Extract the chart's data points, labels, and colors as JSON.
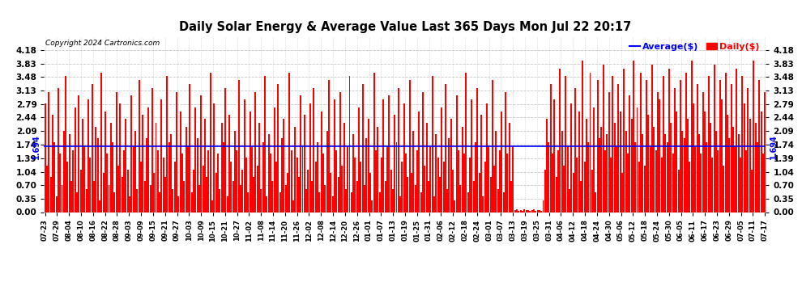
{
  "title": "Daily Solar Energy & Average Value Last 365 Days Mon Jul 22 20:17",
  "copyright": "Copyright 2024 Cartronics.com",
  "average_value": 1.694,
  "average_label": "1.694",
  "yticks": [
    0.0,
    0.35,
    0.7,
    1.04,
    1.39,
    1.74,
    2.09,
    2.44,
    2.79,
    3.13,
    3.48,
    3.83,
    4.18
  ],
  "ylim": [
    0.0,
    4.53
  ],
  "bar_color": "#ff0000",
  "avg_line_color": "#0000ff",
  "background_color": "#ffffff",
  "grid_color": "#bbbbbb",
  "title_color": "#000000",
  "copyright_color": "#000000",
  "legend_avg_color": "#0000ff",
  "legend_daily_color": "#ff0000",
  "xtick_labels": [
    "07-23",
    "07-29",
    "08-04",
    "08-10",
    "08-16",
    "08-22",
    "08-28",
    "09-03",
    "09-09",
    "09-15",
    "09-21",
    "09-27",
    "10-03",
    "10-09",
    "10-15",
    "10-21",
    "10-27",
    "11-02",
    "11-08",
    "11-14",
    "11-20",
    "11-26",
    "12-02",
    "12-08",
    "12-14",
    "12-20",
    "12-26",
    "01-01",
    "01-07",
    "01-13",
    "01-19",
    "01-25",
    "01-31",
    "02-06",
    "02-12",
    "02-18",
    "02-24",
    "03-01",
    "03-07",
    "03-13",
    "03-19",
    "03-25",
    "03-31",
    "04-06",
    "04-12",
    "04-18",
    "04-24",
    "04-30",
    "05-06",
    "05-12",
    "05-18",
    "05-24",
    "05-30",
    "06-05",
    "06-11",
    "06-17",
    "06-23",
    "06-29",
    "07-05",
    "07-11",
    "07-17"
  ],
  "bar_values": [
    2.8,
    1.2,
    3.1,
    0.9,
    2.5,
    1.8,
    0.4,
    3.2,
    1.5,
    0.7,
    2.1,
    3.5,
    1.3,
    2.0,
    0.8,
    1.6,
    2.7,
    0.5,
    3.0,
    1.1,
    2.4,
    1.7,
    0.6,
    2.9,
    1.4,
    3.3,
    0.8,
    2.2,
    1.9,
    0.3,
    3.6,
    1.0,
    2.6,
    1.5,
    0.7,
    2.3,
    1.8,
    0.5,
    3.1,
    1.2,
    2.8,
    0.9,
    1.6,
    2.4,
    1.1,
    0.4,
    3.0,
    1.7,
    2.1,
    0.6,
    3.4,
    1.3,
    2.5,
    0.8,
    1.9,
    2.7,
    0.7,
    3.2,
    1.0,
    2.3,
    1.6,
    0.5,
    2.9,
    1.4,
    0.9,
    3.5,
    1.8,
    2.0,
    0.6,
    1.3,
    3.1,
    0.4,
    2.6,
    1.5,
    0.8,
    2.2,
    1.7,
    3.3,
    0.5,
    1.1,
    2.7,
    1.9,
    0.7,
    3.0,
    1.2,
    2.4,
    0.9,
    1.6,
    3.6,
    0.3,
    2.8,
    1.0,
    1.5,
    0.6,
    2.3,
    1.8,
    3.2,
    0.4,
    2.5,
    1.3,
    0.8,
    2.1,
    1.6,
    3.4,
    0.7,
    1.1,
    2.9,
    1.4,
    0.5,
    2.6,
    1.7,
    0.9,
    3.1,
    1.2,
    2.3,
    0.6,
    1.8,
    3.5,
    0.4,
    2.0,
    1.5,
    0.8,
    2.7,
    1.3,
    3.3,
    0.5,
    1.9,
    2.4,
    0.7,
    1.0,
    3.6,
    1.6,
    0.3,
    2.2,
    1.4,
    0.9,
    3.0,
    1.7,
    2.5,
    0.6,
    1.1,
    2.8,
    0.8,
    3.2,
    1.3,
    1.8,
    0.5,
    2.6,
    1.5,
    0.7,
    2.1,
    3.4,
    1.0,
    0.4,
    2.9,
    1.6,
    0.9,
    3.1,
    1.2,
    2.3,
    0.6,
    1.7,
    3.5,
    0.5,
    2.0,
    1.4,
    0.8,
    2.7,
    1.3,
    3.3,
    0.7,
    1.9,
    2.4,
    1.0,
    0.3,
    3.6,
    1.6,
    2.2,
    0.5,
    1.4,
    2.9,
    0.8,
    1.7,
    3.0,
    1.1,
    0.6,
    2.5,
    1.8,
    3.2,
    0.4,
    1.3,
    2.8,
    1.5,
    0.9,
    3.4,
    1.0,
    2.1,
    0.7,
    1.6,
    2.6,
    0.5,
    3.1,
    1.2,
    2.3,
    0.8,
    1.7,
    3.5,
    0.4,
    2.0,
    1.4,
    0.9,
    2.7,
    1.3,
    3.3,
    0.6,
    1.9,
    2.4,
    1.1,
    0.3,
    3.0,
    1.6,
    0.7,
    2.2,
    1.5,
    3.6,
    0.5,
    1.4,
    2.9,
    0.8,
    1.8,
    3.2,
    1.0,
    2.5,
    0.4,
    1.3,
    2.8,
    1.7,
    0.9,
    3.4,
    1.2,
    2.1,
    0.6,
    1.6,
    2.6,
    0.5,
    3.1,
    1.5,
    2.3,
    0.8,
    1.7,
    0.05,
    0.07,
    0.03,
    0.06,
    0.04,
    0.08,
    0.05,
    0.06,
    0.03,
    0.05,
    0.07,
    0.04,
    0.06,
    0.05,
    0.03,
    0.3,
    1.1,
    2.4,
    1.8,
    3.3,
    1.5,
    2.9,
    0.9,
    1.6,
    3.7,
    2.1,
    1.2,
    3.5,
    1.7,
    0.6,
    2.8,
    1.0,
    3.2,
    1.4,
    2.6,
    0.8,
    3.9,
    1.3,
    2.4,
    1.8,
    3.6,
    1.1,
    2.7,
    0.5,
    3.4,
    1.9,
    2.2,
    3.8,
    1.6,
    2.0,
    3.1,
    1.4,
    3.5,
    2.3,
    1.7,
    3.3,
    2.6,
    1.0,
    3.7,
    2.1,
    1.5,
    3.0,
    2.4,
    3.9,
    1.8,
    2.7,
    1.3,
    3.6,
    2.0,
    1.2,
    3.4,
    2.5,
    1.7,
    3.8,
    2.2,
    1.6,
    3.1,
    2.9,
    1.4,
    3.5,
    2.0,
    1.8,
    3.7,
    2.3,
    1.5,
    3.2,
    2.6,
    1.1,
    3.4,
    2.1,
    1.9,
    3.6,
    2.4,
    1.3,
    3.9,
    2.8,
    1.7,
    3.3,
    2.0,
    1.5,
    3.1,
    2.6,
    1.8,
    3.5,
    2.3,
    1.4,
    3.8,
    2.1,
    1.6,
    3.4,
    2.9,
    1.2,
    3.6,
    2.5,
    1.9,
    3.3,
    2.2,
    1.7,
    3.7,
    2.0,
    1.4,
    3.5,
    2.8,
    1.6,
    3.2,
    2.4,
    1.1,
    3.9,
    2.3,
    1.8,
    3.4,
    2.6,
    1.5,
    3.1
  ]
}
